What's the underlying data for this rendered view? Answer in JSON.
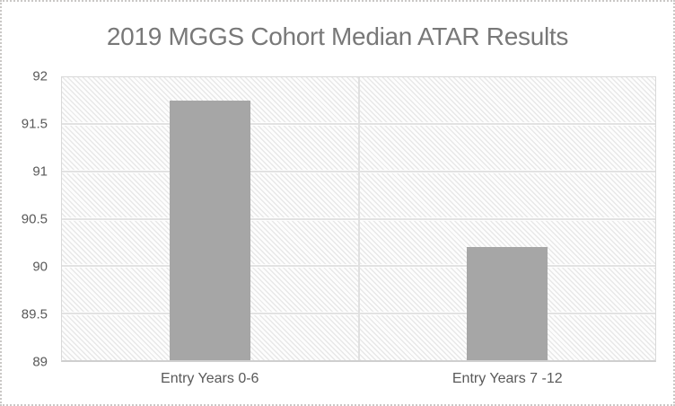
{
  "window": {
    "background": "#ffffff",
    "frame_border_color": "#cac8c6",
    "frame_border_style": "dotted"
  },
  "chart_data": {
    "type": "bar",
    "title": "2019 MGGS Cohort Median ATAR Results",
    "categories": [
      "Entry Years 0-6",
      "Entry Years 7 -12"
    ],
    "values": [
      91.75,
      90.2
    ],
    "xlabel": "",
    "ylabel": "",
    "ylim": [
      89,
      92
    ],
    "ytick_step": 0.5,
    "ytick_labels": [
      "92",
      "91.5",
      "91",
      "90.5",
      "90",
      "89.5",
      "89"
    ],
    "legend": "none",
    "grid": true,
    "data_labels": "none",
    "bar_width_pct": 13.6,
    "plot_fill": "light-downward-diagonal-hatch",
    "colors": {
      "bar_fill": "#a6a6a6",
      "title_text": "#787878",
      "axis_text": "#595959",
      "gridline": "#e2e2e2",
      "axis_line": "#cfcfcf",
      "plot_border": "#d9d9d9",
      "plot_hatch_line": "#e8e8e8",
      "frame_border": "#cac8c6"
    }
  }
}
